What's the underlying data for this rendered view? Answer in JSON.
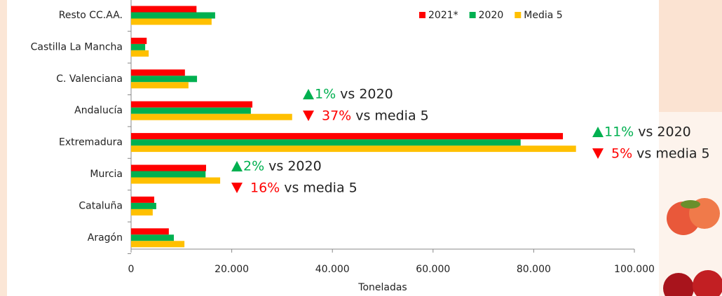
{
  "chart_data": {
    "type": "hbar",
    "categories": [
      "Resto CC.AA.",
      "Castilla La Mancha",
      "C. Valenciana",
      "Andalucía",
      "Extremadura",
      "Murcia",
      "Cataluña",
      "Aragón"
    ],
    "series": [
      {
        "name": "2021*",
        "color": "#ff0000",
        "values": [
          13000,
          3100,
          10700,
          24100,
          85800,
          14900,
          4600,
          7500
        ]
      },
      {
        "name": "2020",
        "color": "#00b050",
        "values": [
          16700,
          2800,
          13100,
          23800,
          77400,
          14800,
          5000,
          8500
        ]
      },
      {
        "name": "Media 5",
        "color": "#ffc000",
        "values": [
          16000,
          3500,
          11400,
          32000,
          88400,
          17700,
          4300,
          10600
        ]
      }
    ],
    "xlim": [
      0,
      100000
    ],
    "xticks": [
      0,
      {
        "value": 20000,
        "label": "20.000"
      },
      {
        "value": 40000,
        "label": "40.000"
      },
      {
        "value": 60000,
        "label": "60.000"
      },
      {
        "value": 80000,
        "label": "80.000"
      },
      {
        "value": 100000,
        "label": "100.000"
      }
    ],
    "xlabel": "Toneladas",
    "annotations": [
      {
        "up": "1%",
        "up_text": "vs 2020",
        "down": "37%",
        "down_text": "vs media 5"
      },
      {
        "up": "11%",
        "up_text": "vs 2020",
        "down": "5%",
        "down_text": "vs media 5"
      },
      {
        "up": "2%",
        "up_text": "vs 2020",
        "down": "16%",
        "down_text": "vs media 5"
      }
    ]
  }
}
